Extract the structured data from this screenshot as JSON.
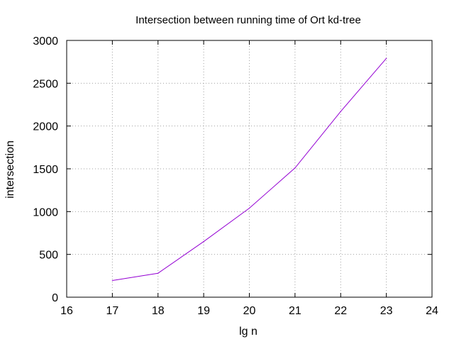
{
  "chart_data": {
    "type": "line",
    "title": "Intersection between running time of Ort kd-tree",
    "xlabel": "lg n",
    "ylabel": "intersection",
    "xlim": [
      16,
      24
    ],
    "ylim": [
      0,
      3000
    ],
    "x_ticks": [
      16,
      17,
      18,
      19,
      20,
      21,
      22,
      23,
      24
    ],
    "y_ticks": [
      0,
      500,
      1000,
      1500,
      2000,
      2500,
      3000
    ],
    "grid": true,
    "legend": "none",
    "series": [
      {
        "color": "#9400d3",
        "x": [
          17,
          18,
          19,
          20,
          21,
          22,
          23
        ],
        "y": [
          195,
          280,
          650,
          1040,
          1510,
          2170,
          2790
        ]
      }
    ]
  }
}
